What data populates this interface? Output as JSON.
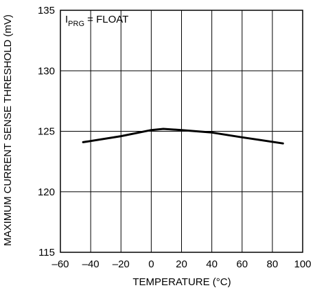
{
  "chart_data": {
    "type": "line",
    "title": "",
    "xlabel": "TEMPERATURE (°C)",
    "ylabel": "MAXIMUM CURRENT SENSE THRESHOLD (mV)",
    "xlim": [
      -60,
      100
    ],
    "ylim": [
      115,
      135
    ],
    "xticks": [
      -60,
      -40,
      -20,
      0,
      20,
      40,
      60,
      80,
      100
    ],
    "yticks": [
      115,
      120,
      125,
      130,
      135
    ],
    "xtick_labels": [
      "–60",
      "–40",
      "–20",
      "0",
      "20",
      "40",
      "60",
      "80",
      "100"
    ],
    "ytick_labels": [
      "115",
      "120",
      "125",
      "130",
      "135"
    ],
    "grid": true,
    "annotation": {
      "main": "I",
      "sub": "PRG",
      "rest": " = FLOAT"
    },
    "series": [
      {
        "x": [
          -45,
          -20,
          0,
          8,
          20,
          40,
          60,
          87
        ],
        "y": [
          124.1,
          124.6,
          125.1,
          125.2,
          125.1,
          124.9,
          124.5,
          124.0
        ]
      }
    ]
  }
}
